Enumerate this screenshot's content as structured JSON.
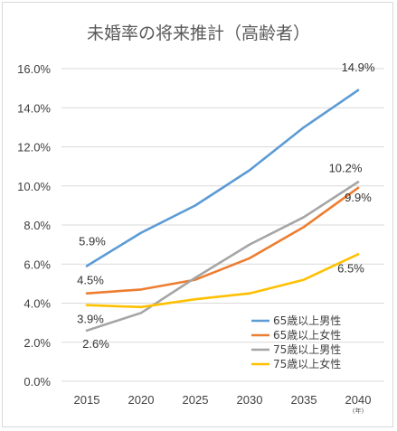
{
  "chart_data": {
    "type": "line",
    "title": "未婚率の将来推計（高齢者）",
    "x": [
      "2015",
      "2020",
      "2025",
      "2030",
      "2035",
      "2040"
    ],
    "x_unit": "(年)",
    "ylim": [
      0,
      16
    ],
    "y_ticks": [
      "0.0%",
      "2.0%",
      "4.0%",
      "6.0%",
      "8.0%",
      "10.0%",
      "12.0%",
      "14.0%",
      "16.0%"
    ],
    "grid": true,
    "legend_position": "bottom-right",
    "series": [
      {
        "name": "65歳以上男性",
        "color": "#5b9bd5",
        "values": [
          5.9,
          7.6,
          9.0,
          10.8,
          13.0,
          14.9
        ]
      },
      {
        "name": "65歳以上女性",
        "color": "#ed7d31",
        "values": [
          4.5,
          4.7,
          5.2,
          6.3,
          7.9,
          9.9
        ]
      },
      {
        "name": "75歳以上男性",
        "color": "#a5a5a5",
        "values": [
          2.6,
          3.5,
          5.3,
          7.0,
          8.4,
          10.2
        ]
      },
      {
        "name": "75歳以上女性",
        "color": "#ffc000",
        "values": [
          3.9,
          3.8,
          4.2,
          4.5,
          5.2,
          6.5
        ]
      }
    ],
    "data_labels": [
      {
        "series": 0,
        "index": 0,
        "text": "5.9%"
      },
      {
        "series": 0,
        "index": 5,
        "text": "14.9%"
      },
      {
        "series": 1,
        "index": 0,
        "text": "4.5%"
      },
      {
        "series": 1,
        "index": 5,
        "text": "9.9%"
      },
      {
        "series": 2,
        "index": 0,
        "text": "2.6%"
      },
      {
        "series": 2,
        "index": 5,
        "text": "10.2%"
      },
      {
        "series": 3,
        "index": 0,
        "text": "3.9%"
      },
      {
        "series": 3,
        "index": 5,
        "text": "6.5%"
      }
    ]
  }
}
